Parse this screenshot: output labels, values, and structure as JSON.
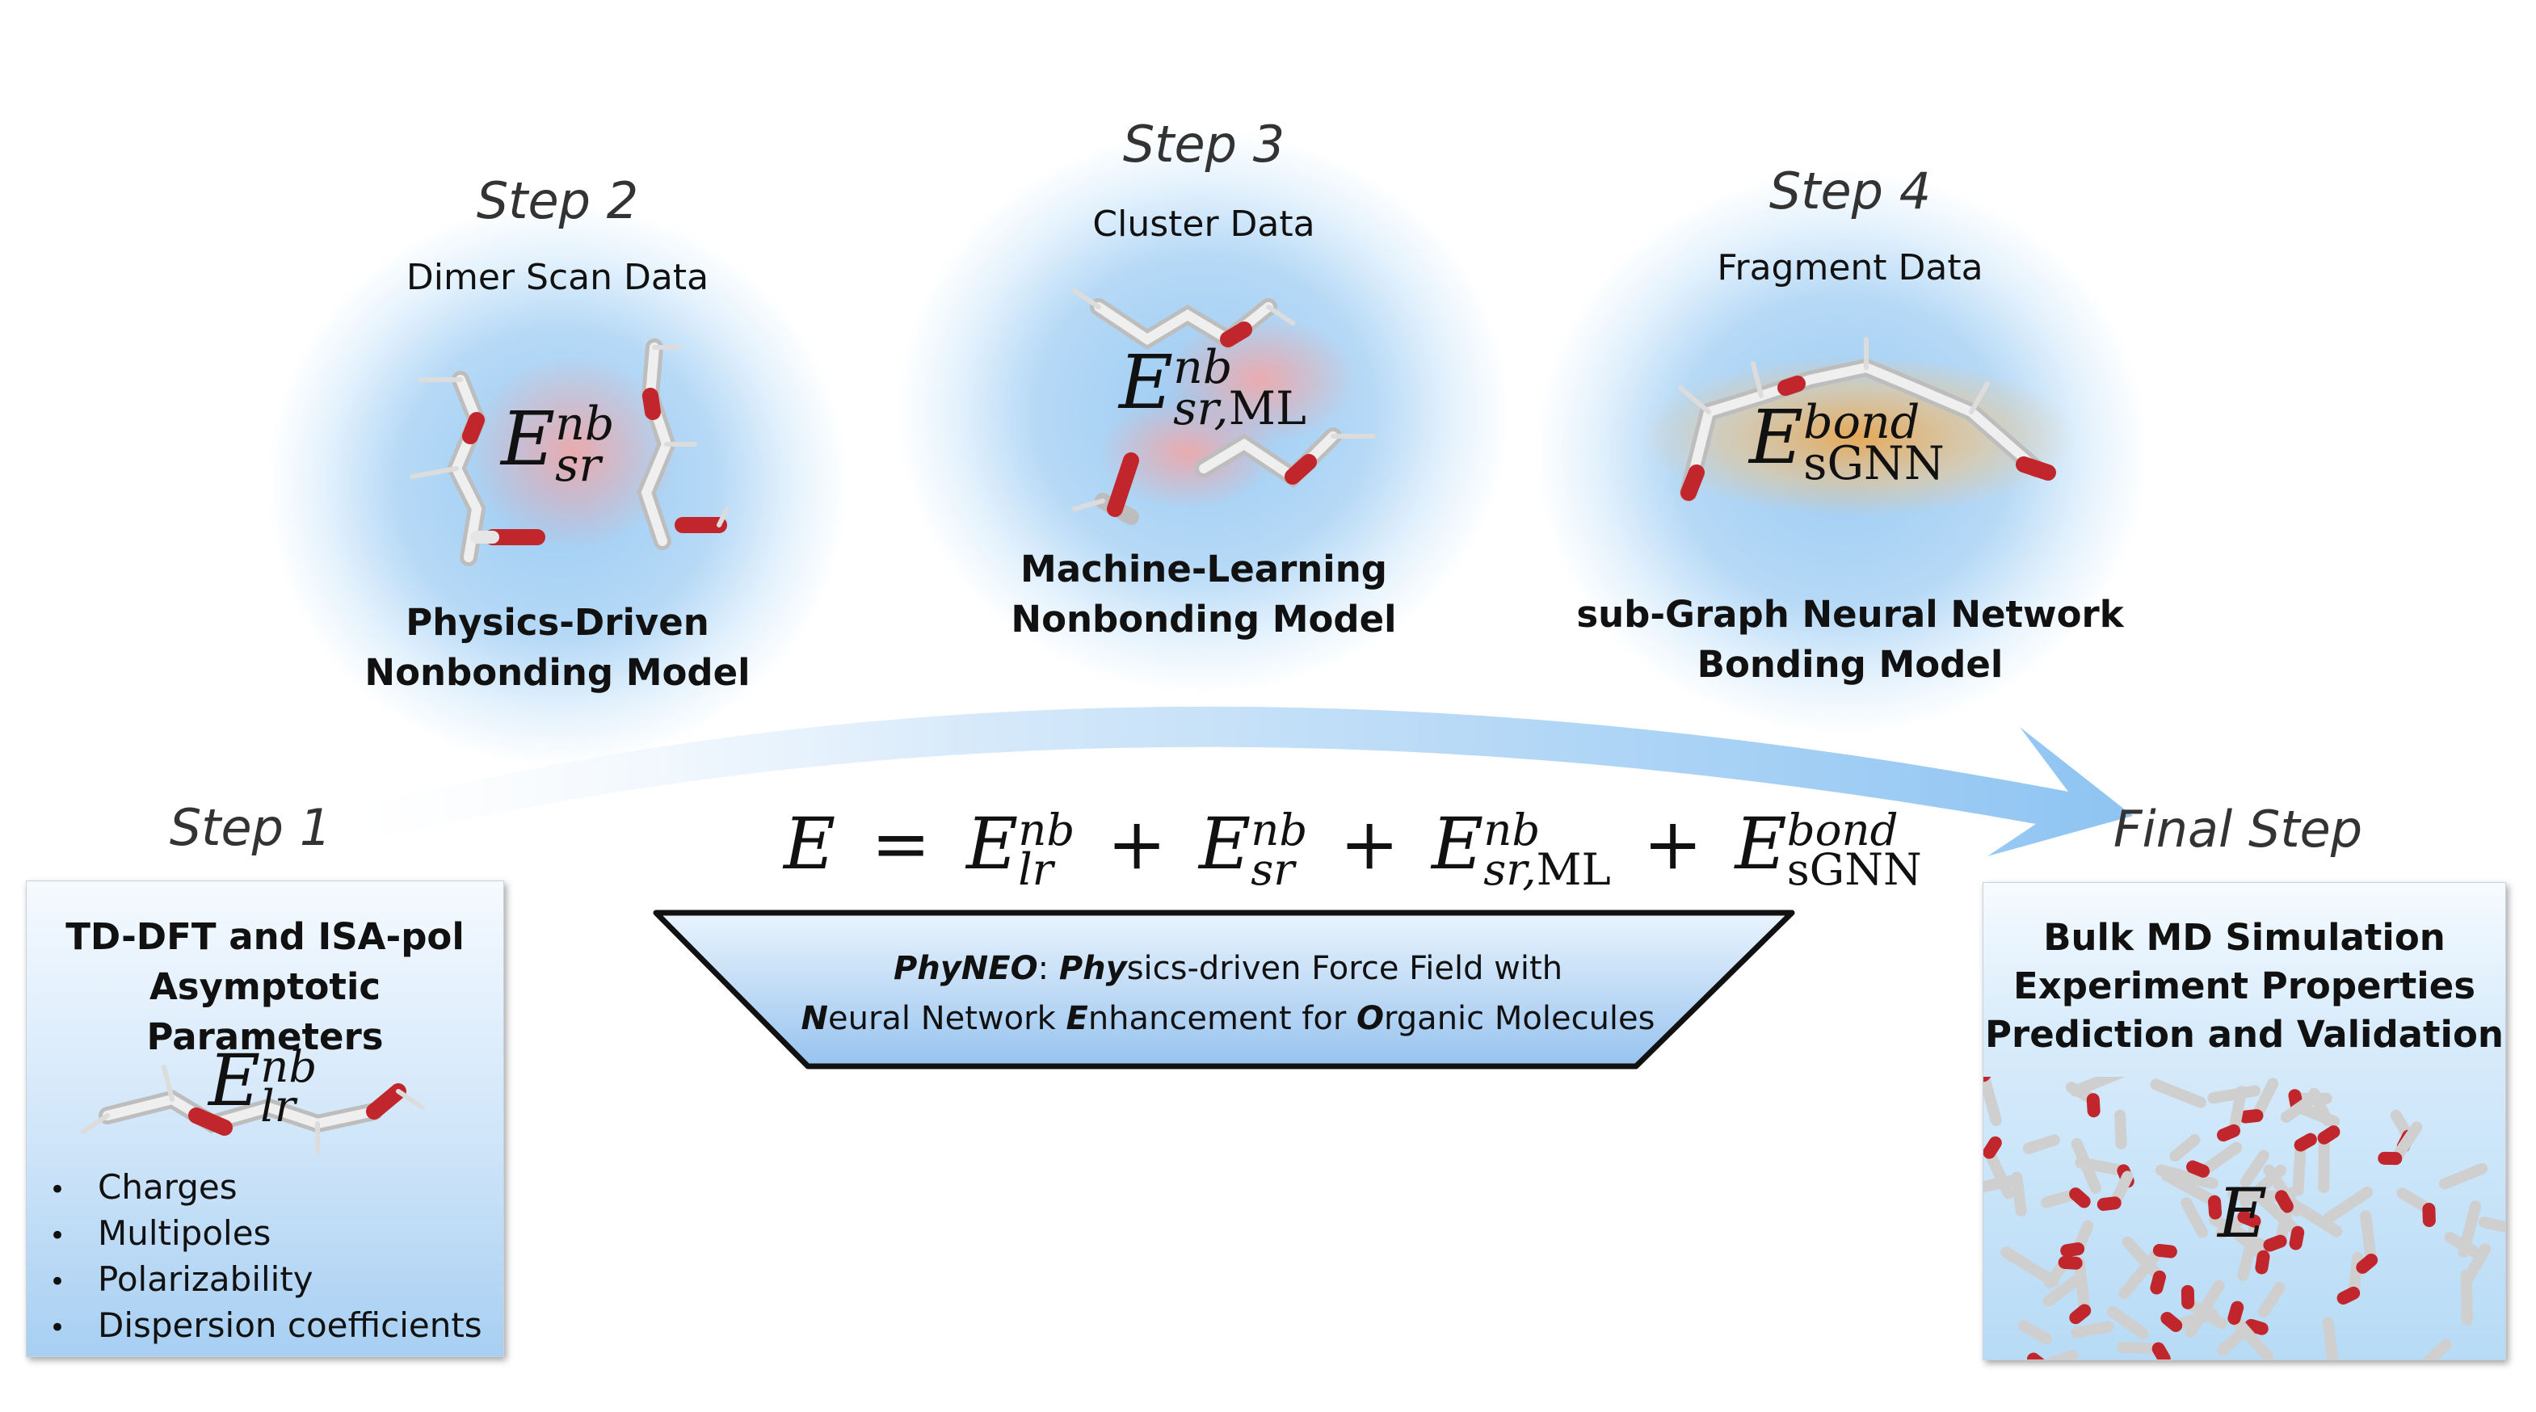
{
  "steps": {
    "step1": {
      "label": "Step 1"
    },
    "step2": {
      "label": "Step 2",
      "data": "Dimer Scan Data",
      "model": "Physics-Driven\nNonbonding Model"
    },
    "step3": {
      "label": "Step 3",
      "data": "Cluster Data",
      "model": "Machine-Learning\nNonbonding Model"
    },
    "step4": {
      "label": "Step 4",
      "data": "Fragment Data",
      "model": "sub-Graph Neural Network\nBonding Model"
    },
    "final": {
      "label": "Final Step"
    }
  },
  "step1_box": {
    "title": "TD-DFT and ISA-pol\nAsymptotic Parameters",
    "items": [
      "Charges",
      "Multipoles",
      "Polarizability",
      "Dispersion coefficients"
    ]
  },
  "final_box": {
    "title": "Bulk MD Simulation\nExperiment Properties\nPrediction and Validation",
    "symbol": "E"
  },
  "terms": {
    "lr": {
      "E": "E",
      "sup": "nb",
      "sub": "lr"
    },
    "sr": {
      "E": "E",
      "sup": "nb",
      "sub": "sr"
    },
    "ml": {
      "E": "E",
      "sup": "nb",
      "sub": "sr,",
      "sub_rm": "ML"
    },
    "bond": {
      "E": "E",
      "sup": "bond",
      "sub": "sGNN"
    }
  },
  "equation": {
    "lhs": "E",
    "eq": "=",
    "plus": "+"
  },
  "banner": {
    "line1": [
      {
        "text": "PhyNEO",
        "style": "bi"
      },
      {
        "text": ": ",
        "style": "n"
      },
      {
        "text": "Phy",
        "style": "bi"
      },
      {
        "text": "sics-driven Force Field with",
        "style": "n"
      }
    ],
    "line2": [
      {
        "text": "N",
        "style": "bi"
      },
      {
        "text": "eural Network ",
        "style": "n"
      },
      {
        "text": "E",
        "style": "bi"
      },
      {
        "text": "nhancement for ",
        "style": "n"
      },
      {
        "text": "O",
        "style": "bi"
      },
      {
        "text": "rganic Molecules",
        "style": "n"
      }
    ]
  },
  "colors": {
    "glow_blue": "#a9d2f5",
    "glow_orange": "#f2a23c",
    "glow_red": "#f4b3b3",
    "arrow": "#8ec4f2",
    "oxygen": "#c0262b",
    "bond_gray": "#d8d8d8",
    "banner_top": "#e8f3fc",
    "banner_bottom": "#9ec7f0"
  }
}
